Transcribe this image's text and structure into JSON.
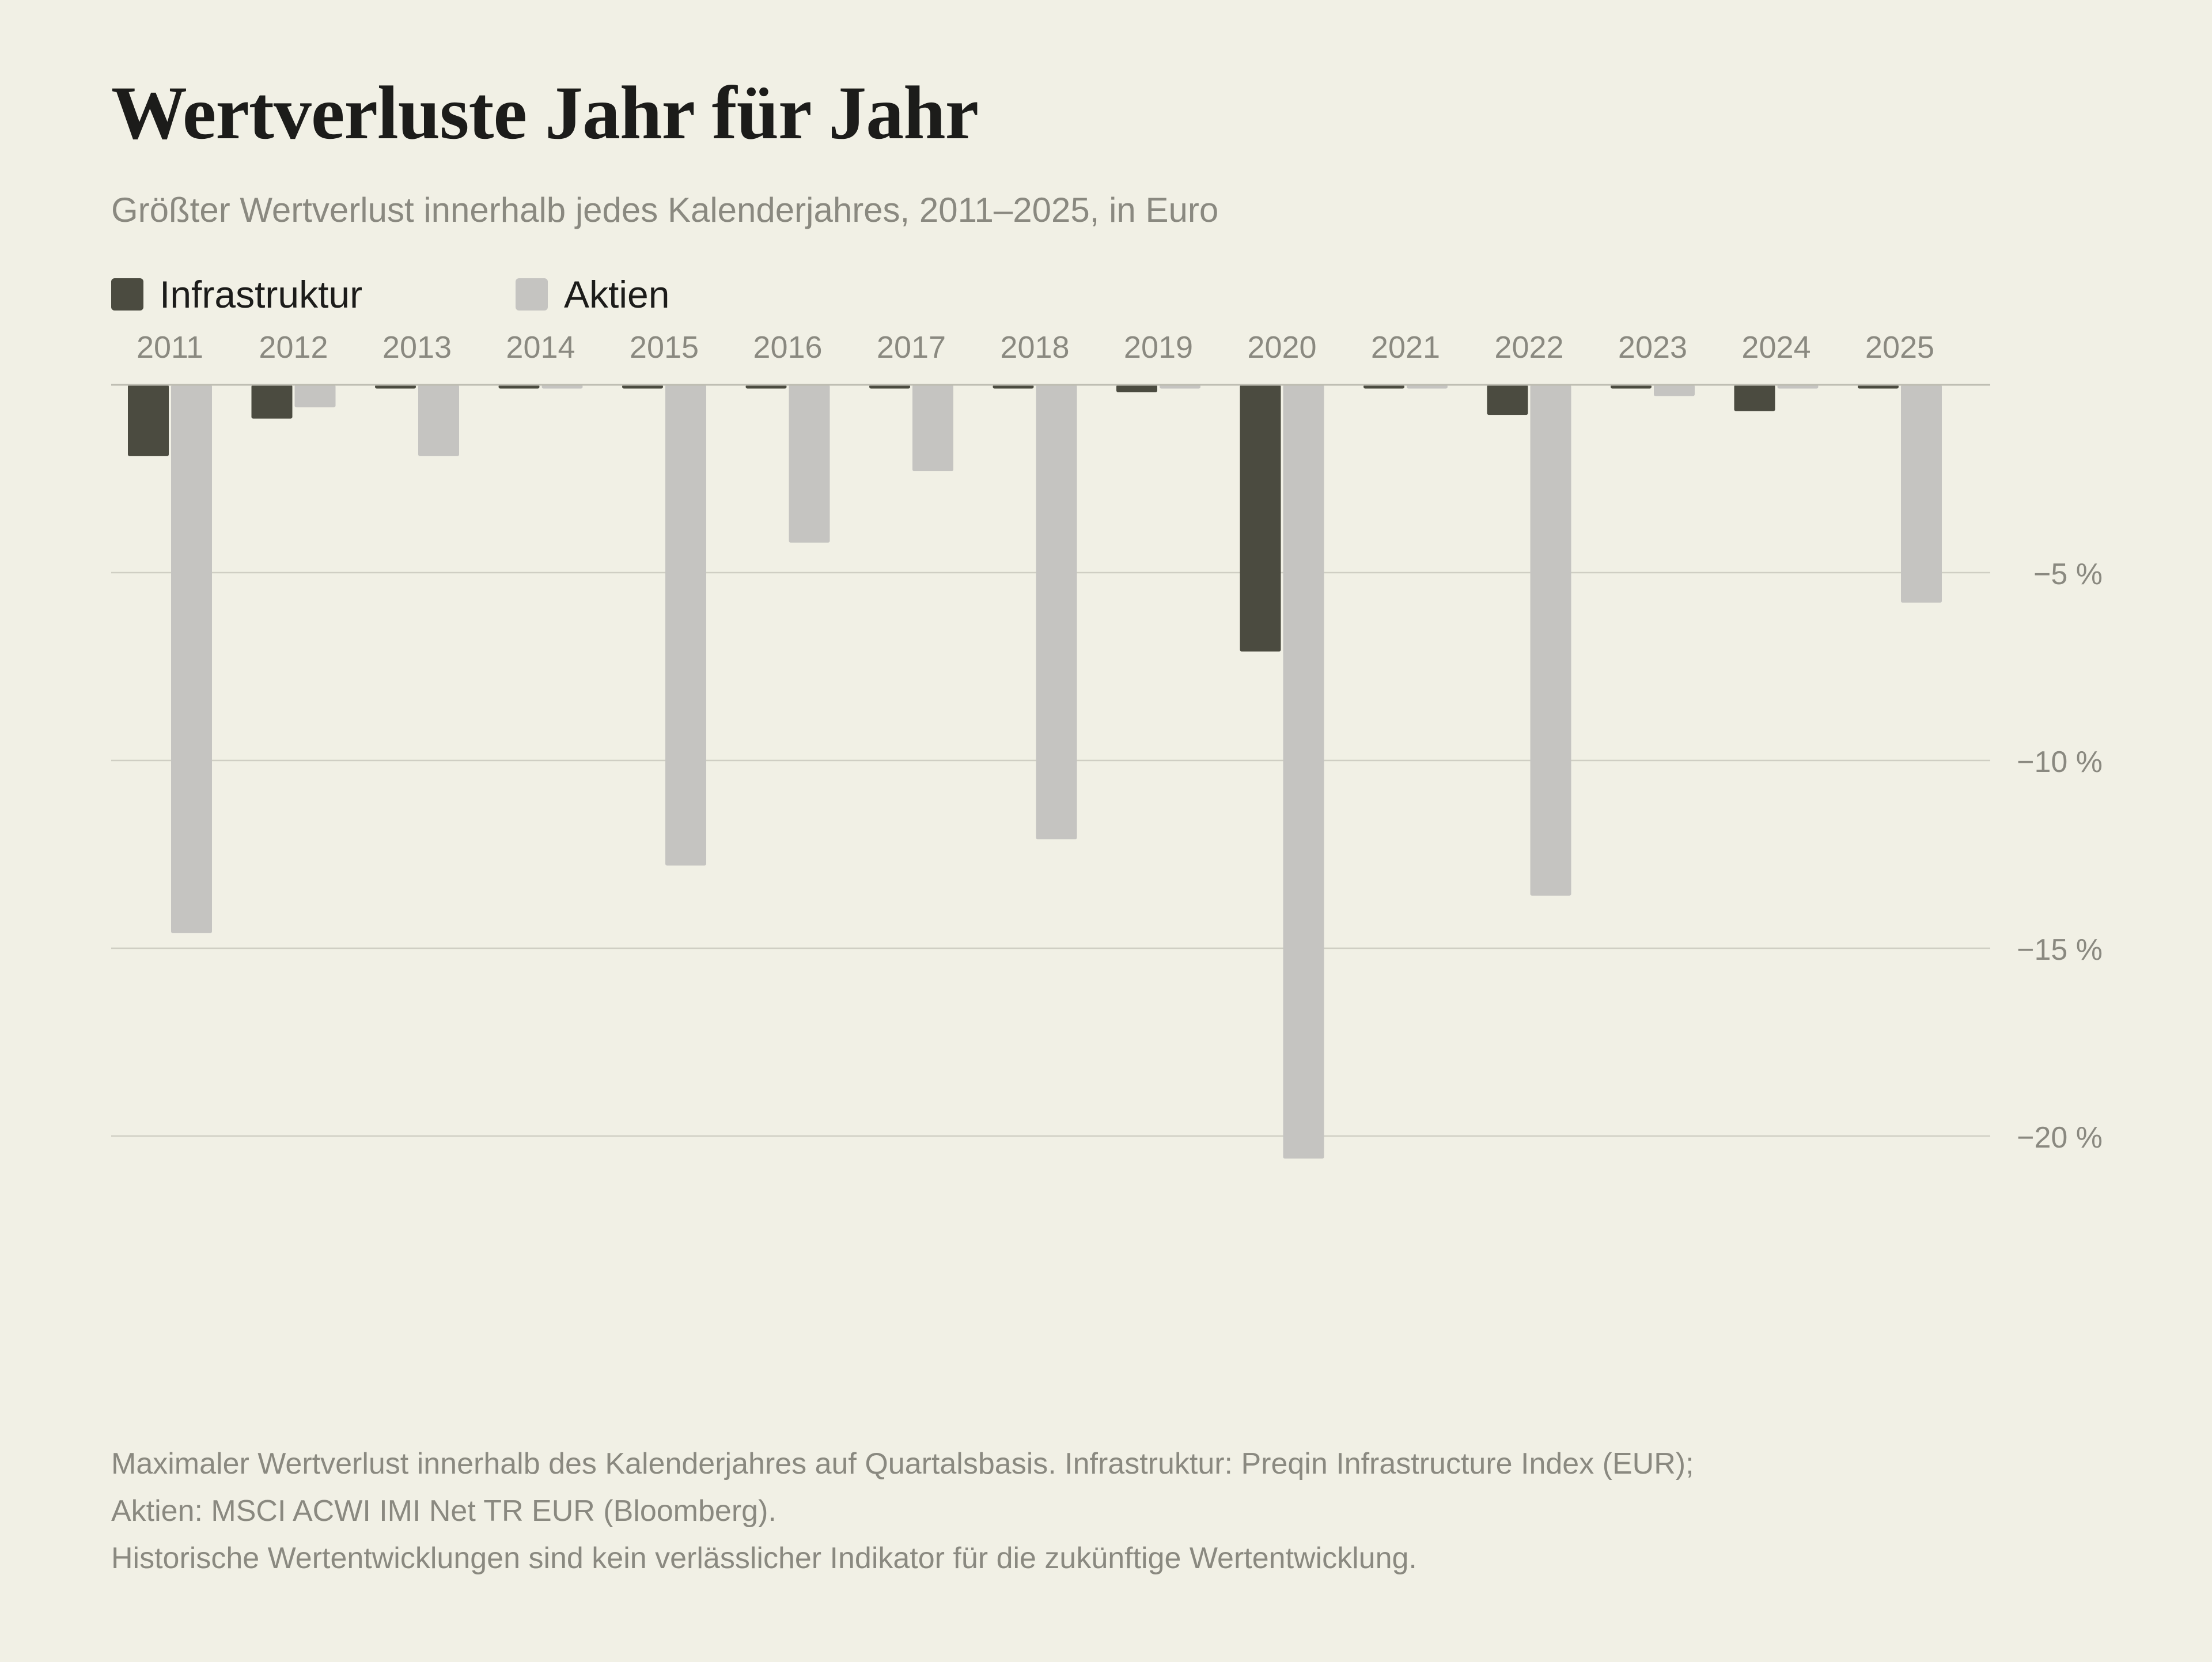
{
  "title": "Wertverluste Jahr für Jahr",
  "subtitle": "Größter Wertverlust innerhalb jedes Kalenderjahres, 2011–2025, in Euro",
  "legend": [
    {
      "label": "Infrastruktur",
      "color": "#4b4b40"
    },
    {
      "label": "Aktien",
      "color": "#c5c4c1"
    }
  ],
  "chart_data": {
    "type": "bar",
    "title": "Wertverluste Jahr für Jahr",
    "subtitle": "Größter Wertverlust innerhalb jedes Kalenderjahres, 2011–2025, in Euro",
    "xlabel": "",
    "ylabel": "",
    "categories": [
      "2011",
      "2012",
      "2013",
      "2014",
      "2015",
      "2016",
      "2017",
      "2018",
      "2019",
      "2020",
      "2021",
      "2022",
      "2023",
      "2024",
      "2025"
    ],
    "series": [
      {
        "name": "Infrastruktur",
        "color": "#4b4b40",
        "values": [
          -1.9,
          -0.9,
          -0.1,
          -0.1,
          -0.1,
          -0.1,
          -0.1,
          -0.1,
          -0.2,
          -7.1,
          -0.1,
          -0.8,
          -0.1,
          -0.7,
          -0.1
        ]
      },
      {
        "name": "Aktien",
        "color": "#c5c4c1",
        "values": [
          -14.6,
          -0.6,
          -1.9,
          -0.1,
          -12.8,
          -4.2,
          -2.3,
          -12.1,
          -0.1,
          -20.6,
          -0.1,
          -13.6,
          -0.3,
          -0.1,
          -5.8
        ]
      }
    ],
    "ylim": [
      -20,
      0
    ],
    "yticks": [
      {
        "value": -5,
        "label": "−5 %"
      },
      {
        "value": -10,
        "label": "−10 %"
      },
      {
        "value": -15,
        "label": "−15 %"
      },
      {
        "value": -20,
        "label": "−20 %"
      }
    ],
    "grid": true,
    "x_axis_position": "top",
    "y_axis_position": "right",
    "legend_position": "top-left"
  },
  "footnote": [
    "Maximaler Wertverlust innerhalb des Kalenderjahres auf Quartalsbasis. Infrastruktur: Preqin Infrastructure Index (EUR);",
    "Aktien: MSCI ACWI IMI Net TR EUR (Bloomberg).",
    "Historische Wertentwicklungen sind kein verlässlicher Indikator für die zukünftige Wertentwicklung."
  ]
}
